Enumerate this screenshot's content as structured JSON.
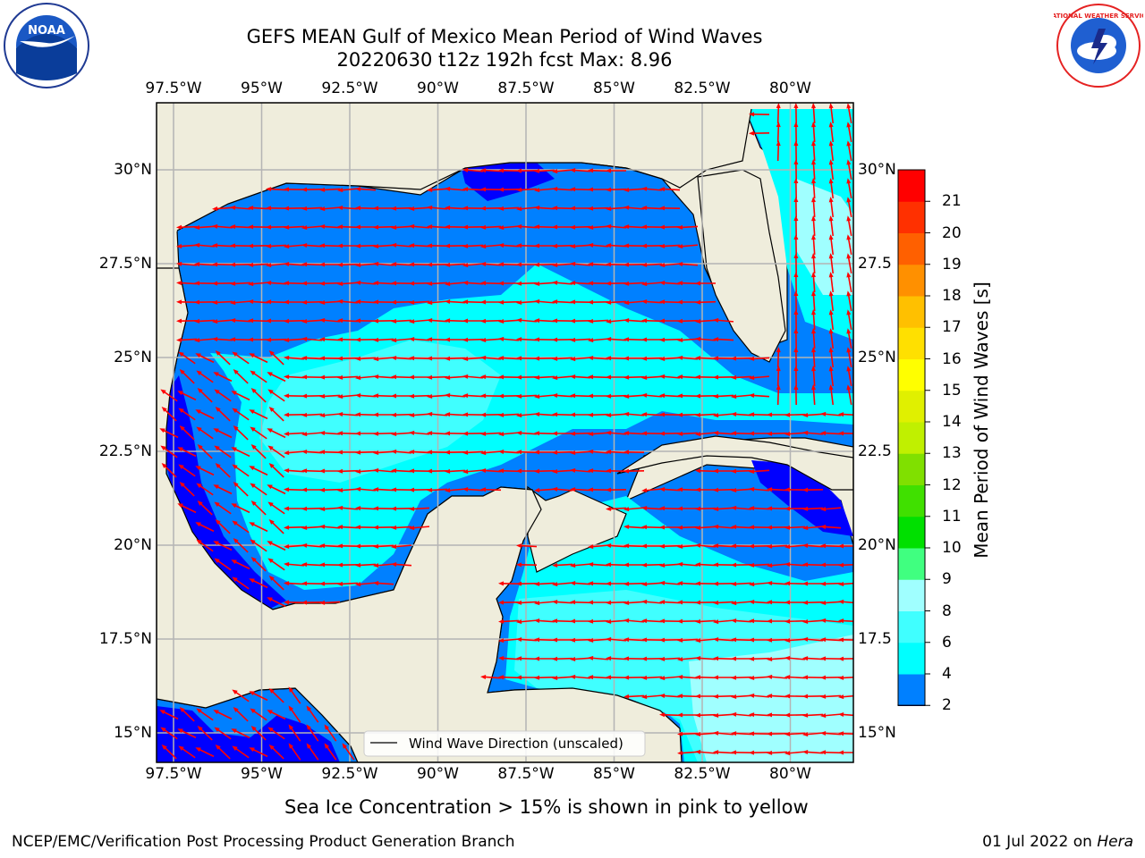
{
  "title": {
    "line1": "GEFS MEAN Gulf of Mexico Mean Period of Wind Waves",
    "line2": "20220630 t12z 192h fcst   Max: 8.96"
  },
  "logos": {
    "left": {
      "name": "noaa-logo",
      "text": "NOAA"
    },
    "right": {
      "name": "nws-logo",
      "text": "NATIONAL WEATHER SERVICE"
    }
  },
  "map": {
    "lon_labels": [
      "97.5°W",
      "95°W",
      "92.5°W",
      "90°W",
      "87.5°W",
      "85°W",
      "82.5°W",
      "80°W"
    ],
    "lat_labels_left": [
      "30°N",
      "27.5°N",
      "25°N",
      "22.5°N",
      "20°N",
      "17.5°N",
      "15°N"
    ],
    "lat_labels_right": [
      "30°N",
      "27.5",
      "25°N",
      "22.5",
      "20°N",
      "17.5",
      "15°N"
    ],
    "legend_text": "Wind Wave Direction (unscaled)",
    "colors": {
      "land": "#efeddc",
      "arrow": "#ff0000",
      "grid": "#b4b4b4"
    }
  },
  "colorbar": {
    "label": "Mean Period of Wind Waves [s]",
    "ticks": [
      "2",
      "4",
      "6",
      "8",
      "9",
      "10",
      "11",
      "12",
      "13",
      "14",
      "15",
      "16",
      "17",
      "18",
      "19",
      "20",
      "21"
    ],
    "colors": [
      "#0080ff",
      "#00ffff",
      "#40ffff",
      "#a0ffff",
      "#40ff80",
      "#00e000",
      "#40e000",
      "#80e000",
      "#c0f000",
      "#e0f000",
      "#ffff00",
      "#ffe000",
      "#ffc000",
      "#ff9000",
      "#ff6000",
      "#ff3000",
      "#ff0000"
    ],
    "under_color": "#0000ff"
  },
  "footer": {
    "note": "Sea Ice Concentration > 15% is shown in pink to yellow",
    "left": "NCEP/EMC/Verification Post Processing Product Generation Branch",
    "right_date": "01 Jul 2022 on",
    "right_host": "Hera"
  }
}
